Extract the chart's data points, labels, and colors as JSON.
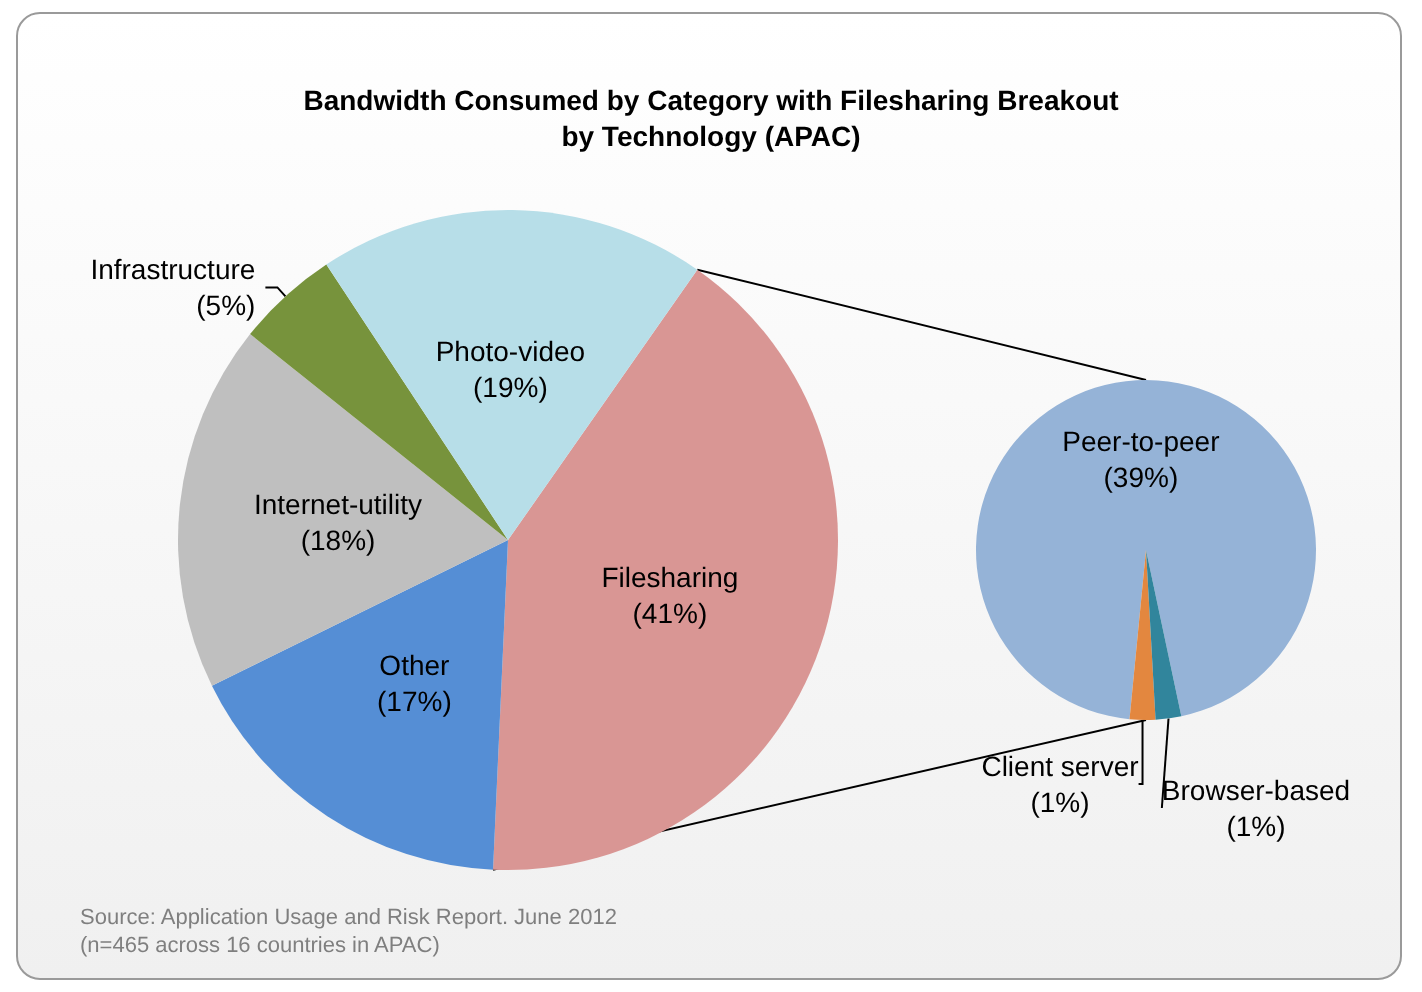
{
  "chart_data": [
    {
      "type": "pie",
      "title": "Bandwidth Consumed by Category with Filesharing Breakout\nby Technology (APAC)",
      "categories": [
        "Filesharing",
        "Other",
        "Internet-utility",
        "Infrastructure",
        "Photo-video"
      ],
      "values": [
        41,
        17,
        18,
        5,
        19
      ],
      "value_labels": [
        "(41%)",
        "(17%)",
        "(18%)",
        "(5%)",
        "(19%)"
      ],
      "colors": [
        "#d99694",
        "#558ed5",
        "#bfbfbf",
        "#77933c",
        "#b7dee8"
      ],
      "annotations": [
        "Source: Application Usage and Risk Report. June 2012 (n=465 across 16 countries in APAC)"
      ],
      "legend": false
    },
    {
      "type": "pie",
      "categories": [
        "Peer-to-peer",
        "Client server",
        "Browser-based"
      ],
      "values": [
        39,
        1,
        1
      ],
      "value_labels": [
        "(39%)",
        "(1%)",
        "(1%)"
      ],
      "colors": [
        "#95b3d7",
        "#e3873f",
        "#31859c"
      ],
      "legend": false
    }
  ]
}
